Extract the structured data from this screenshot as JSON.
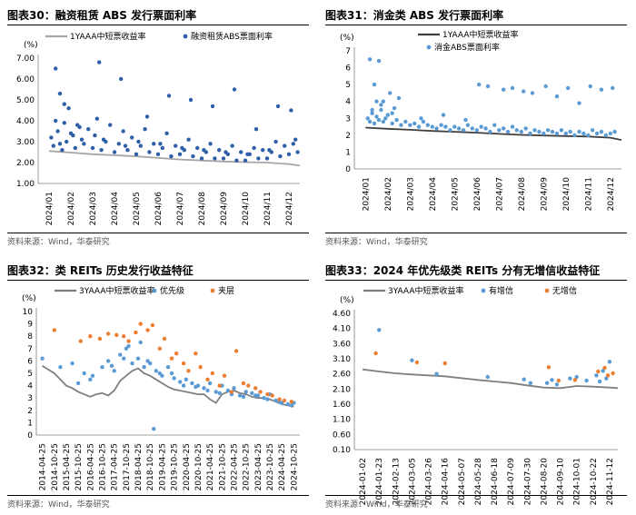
{
  "panels": [
    {
      "title": "图表30：融资租赁 ABS 发行票面利率",
      "source": "资料来源：Wind，华泰研究",
      "chart_data": {
        "type": "scatter",
        "ylabel": "(%)",
        "ylim": [
          1.0,
          7.0
        ],
        "yticks": [
          "1.00",
          "2.00",
          "3.00",
          "4.00",
          "5.00",
          "6.00",
          "7.00"
        ],
        "xticks": [
          "2024/01",
          "2024/02",
          "2024/03",
          "2024/04",
          "2024/05",
          "2024/06",
          "2024/07",
          "2024/08",
          "2024/09",
          "2024/10",
          "2024/11",
          "2024/12"
        ],
        "series": [
          {
            "name": "1YAAA中短票收益率",
            "type": "line",
            "color": "#a6a6a6",
            "x": [
              0,
              1,
              2,
              3,
              4,
              5,
              6,
              7,
              8,
              9,
              10,
              11,
              11.5
            ],
            "values": [
              2.55,
              2.48,
              2.4,
              2.35,
              2.3,
              2.22,
              2.15,
              2.1,
              2.05,
              2.02,
              2.0,
              1.93,
              1.85
            ]
          },
          {
            "name": "融资租赁ABS票面利率",
            "type": "scatter",
            "color": "#2e5fa8",
            "x": [
              0.1,
              0.2,
              0.3,
              0.4,
              0.5,
              0.6,
              0.7,
              0.8,
              0.9,
              1.1,
              1.2,
              1.3,
              1.5,
              1.6,
              1.8,
              2.0,
              2.1,
              2.2,
              2.4,
              2.6,
              2.8,
              3.0,
              3.2,
              3.4,
              3.6,
              3.8,
              4.0,
              4.2,
              4.4,
              4.6,
              4.8,
              5.0,
              5.2,
              5.4,
              5.6,
              5.8,
              6.0,
              6.2,
              6.4,
              6.6,
              6.8,
              7.0,
              7.2,
              7.4,
              7.6,
              7.8,
              8.0,
              8.2,
              8.4,
              8.6,
              8.8,
              9.0,
              9.2,
              9.4,
              9.6,
              9.8,
              10.0,
              10.2,
              10.4,
              10.6,
              10.8,
              11.0,
              11.2,
              11.4,
              0.3,
              0.7,
              1.4,
              2.3,
              3.3,
              4.5,
              5.5,
              6.5,
              7.5,
              8.5,
              9.5,
              10.5,
              11.1,
              0.5,
              1.0,
              2.5,
              3.5,
              4.1,
              5.1,
              6.1,
              7.1,
              8.1,
              9.1,
              10.1,
              11.3
            ],
            "values": [
              3.2,
              2.8,
              4.0,
              3.5,
              5.3,
              2.6,
              3.9,
              3.0,
              4.6,
              3.3,
              2.7,
              3.8,
              3.1,
              2.9,
              3.6,
              2.7,
              3.3,
              4.1,
              2.6,
              3.0,
              3.8,
              2.5,
              2.9,
              3.5,
              2.6,
              3.2,
              2.4,
              2.8,
              3.6,
              2.5,
              2.9,
              2.4,
              2.7,
              3.4,
              2.3,
              2.8,
              2.4,
              2.6,
              3.1,
              2.3,
              2.7,
              2.2,
              2.5,
              2.9,
              2.2,
              2.6,
              2.2,
              2.4,
              2.8,
              2.1,
              2.5,
              2.1,
              2.4,
              2.7,
              2.2,
              2.6,
              2.2,
              2.5,
              3.0,
              2.3,
              2.8,
              2.4,
              2.9,
              2.5,
              6.5,
              4.8,
              3.7,
              6.8,
              6.0,
              4.2,
              5.2,
              5.0,
              4.7,
              5.5,
              3.6,
              4.7,
              4.5,
              2.9,
              3.4,
              3.1,
              2.8,
              3.0,
              2.9,
              2.7,
              2.6,
              2.5,
              2.4,
              2.6,
              3.1
            ]
          }
        ]
      }
    },
    {
      "title": "图表31：消金类 ABS 发行票面利率",
      "source": "资料来源：Wind，华泰研究",
      "chart_data": {
        "type": "scatter",
        "ylabel": "(%)",
        "ylim": [
          0,
          7
        ],
        "yticks": [
          "0",
          "1",
          "2",
          "3",
          "4",
          "5",
          "6",
          "7"
        ],
        "xticks": [
          "2024/01",
          "2024/02",
          "2024/03",
          "2024/04",
          "2024/05",
          "2024/06",
          "2024/07",
          "2024/08",
          "2024/09",
          "2024/10",
          "2024/11",
          "2024/12"
        ],
        "series": [
          {
            "name": "1YAAA中短票收益率",
            "type": "line",
            "color": "#404040",
            "x": [
              0,
              1,
              2,
              3,
              4,
              5,
              6,
              7,
              8,
              9,
              10,
              11,
              11.5
            ],
            "values": [
              2.45,
              2.38,
              2.32,
              2.25,
              2.2,
              2.15,
              2.08,
              2.02,
              1.98,
              1.95,
              1.92,
              1.85,
              1.72
            ]
          },
          {
            "name": "消金ABS票面利率",
            "type": "scatter",
            "color": "#5b9bd5",
            "x": [
              0.1,
              0.2,
              0.3,
              0.4,
              0.5,
              0.6,
              0.7,
              0.8,
              0.9,
              1.0,
              1.2,
              1.4,
              1.6,
              1.8,
              2.0,
              2.2,
              2.4,
              2.6,
              2.8,
              3.0,
              3.2,
              3.4,
              3.6,
              3.8,
              4.0,
              4.2,
              4.4,
              4.6,
              4.8,
              5.0,
              5.2,
              5.4,
              5.6,
              5.8,
              6.0,
              6.2,
              6.4,
              6.6,
              6.8,
              7.0,
              7.2,
              7.4,
              7.6,
              7.8,
              8.0,
              8.2,
              8.4,
              8.6,
              8.8,
              9.0,
              9.2,
              9.4,
              9.6,
              9.8,
              10.0,
              10.2,
              10.4,
              10.6,
              10.8,
              11.0,
              11.2,
              0.2,
              0.4,
              0.6,
              0.8,
              1.1,
              1.3,
              1.5,
              5.1,
              5.5,
              6.2,
              6.6,
              7.1,
              7.5,
              8.1,
              8.6,
              9.1,
              9.6,
              10.1,
              10.6,
              11.1,
              0.3,
              0.5,
              0.7,
              1.2,
              2.5,
              3.5,
              4.5
            ],
            "values": [
              3.0,
              2.8,
              3.3,
              2.7,
              3.1,
              2.9,
              3.5,
              2.8,
              3.0,
              3.2,
              2.7,
              2.9,
              2.6,
              2.8,
              2.6,
              2.7,
              2.5,
              2.8,
              2.6,
              2.5,
              2.4,
              2.6,
              2.5,
              2.3,
              2.5,
              2.4,
              2.3,
              2.6,
              2.4,
              2.3,
              2.5,
              2.4,
              2.2,
              2.6,
              2.3,
              2.4,
              2.2,
              2.5,
              2.3,
              2.2,
              2.4,
              2.1,
              2.3,
              2.2,
              2.1,
              2.3,
              2.2,
              2.1,
              2.3,
              2.1,
              2.2,
              2.0,
              2.2,
              2.1,
              2.0,
              2.3,
              2.1,
              2.2,
              2.0,
              2.1,
              2.2,
              6.5,
              5.0,
              6.4,
              4.0,
              4.5,
              3.6,
              4.2,
              5.0,
              4.9,
              4.7,
              4.8,
              4.6,
              4.5,
              4.9,
              4.3,
              4.8,
              3.9,
              4.9,
              4.7,
              4.8,
              3.5,
              4.0,
              3.8,
              3.3,
              3.0,
              3.2,
              2.9
            ]
          }
        ]
      }
    },
    {
      "title": "图表32：类 REITs 历史发行收益特征",
      "source": "资料来源：Wind，华泰研究",
      "chart_data": {
        "type": "scatter",
        "ylabel": "(%)",
        "ylim": [
          0,
          10
        ],
        "yticks": [
          "0",
          "1",
          "2",
          "3",
          "4",
          "5",
          "6",
          "7",
          "8",
          "9",
          "10"
        ],
        "xticks": [
          "2014-04-25",
          "2014-10-25",
          "2015-04-25",
          "2015-10-25",
          "2016-04-25",
          "2016-10-25",
          "2017-04-25",
          "2017-10-25",
          "2018-04-25",
          "2018-10-25",
          "2019-04-25",
          "2019-10-25",
          "2020-04-25",
          "2020-10-25",
          "2021-04-25",
          "2021-10-25",
          "2022-04-25",
          "2022-10-25",
          "2023-04-25",
          "2023-10-25",
          "2024-04-25",
          "2024-10-25"
        ],
        "series": [
          {
            "name": "3YAAA中短票收益率",
            "type": "line",
            "color": "#7f7f7f",
            "x": [
              0,
              0.5,
              1,
              1.5,
              2,
              2.5,
              3,
              3.5,
              4,
              4.5,
              5,
              5.5,
              6,
              6.5,
              7,
              7.5,
              8,
              8.5,
              9,
              9.5,
              10,
              10.5,
              11,
              11.5,
              12,
              12.5,
              13,
              13.5,
              14,
              14.5,
              15,
              15.5,
              16,
              16.5,
              17,
              17.5,
              18,
              18.5,
              19,
              19.5,
              20,
              20.5,
              21
            ],
            "values": [
              5.6,
              5.3,
              5.0,
              4.5,
              4.0,
              3.8,
              3.5,
              3.3,
              3.1,
              3.3,
              3.4,
              3.2,
              3.6,
              4.4,
              4.8,
              5.2,
              5.4,
              5.0,
              4.8,
              4.5,
              4.2,
              3.9,
              3.7,
              3.6,
              3.5,
              3.4,
              3.3,
              3.3,
              2.9,
              2.6,
              3.3,
              3.5,
              3.6,
              3.4,
              3.3,
              3.1,
              3.0,
              3.0,
              2.9,
              2.7,
              2.5,
              2.4,
              2.3
            ]
          },
          {
            "name": "优先级",
            "type": "scatter",
            "color": "#5b9bd5",
            "x": [
              0,
              1.5,
              3.0,
              3.5,
              4.2,
              5.0,
              5.5,
              6.0,
              6.5,
              7.0,
              7.5,
              8.0,
              8.5,
              9.0,
              9.5,
              10.0,
              10.5,
              11.0,
              11.5,
              12.0,
              12.5,
              13.0,
              13.5,
              14.0,
              14.5,
              15.0,
              15.5,
              16.0,
              16.5,
              17.0,
              17.5,
              18.0,
              18.5,
              19.0,
              19.5,
              20.0,
              20.5,
              21.0,
              2.5,
              4.0,
              5.8,
              6.8,
              7.2,
              8.2,
              8.8,
              9.8,
              10.8,
              11.8,
              12.8,
              13.8,
              14.8,
              15.8,
              16.8,
              17.8,
              18.8,
              19.8,
              20.8,
              9.3
            ],
            "values": [
              6.2,
              5.5,
              4.2,
              5.0,
              4.8,
              5.5,
              6.0,
              5.2,
              6.5,
              7.0,
              5.8,
              6.2,
              5.5,
              5.8,
              5.2,
              4.8,
              5.5,
              4.6,
              4.3,
              4.5,
              4.2,
              4.0,
              3.8,
              4.2,
              3.5,
              4.0,
              3.6,
              3.8,
              3.2,
              3.5,
              3.4,
              3.2,
              3.0,
              3.3,
              2.8,
              2.6,
              2.5,
              2.6,
              5.8,
              4.5,
              5.6,
              6.2,
              7.2,
              7.5,
              6.0,
              5.0,
              5.0,
              4.0,
              3.9,
              3.6,
              3.4,
              3.3,
              3.1,
              3.2,
              2.9,
              2.7,
              2.4,
              0.5
            ]
          },
          {
            "name": "夹层",
            "type": "scatter",
            "color": "#ed7d31",
            "x": [
              1.0,
              3.2,
              4.0,
              4.8,
              5.5,
              6.2,
              6.8,
              7.2,
              7.8,
              8.2,
              8.8,
              9.2,
              9.8,
              10.2,
              10.8,
              11.2,
              11.8,
              12.2,
              12.8,
              13.2,
              13.8,
              14.2,
              14.8,
              15.2,
              15.8,
              16.2,
              16.8,
              17.2,
              17.8,
              18.2,
              18.8,
              19.2,
              19.8,
              20.2,
              20.8
            ],
            "values": [
              8.5,
              7.6,
              8.0,
              7.8,
              8.2,
              8.1,
              8.0,
              7.6,
              8.3,
              9.0,
              8.5,
              8.9,
              7.0,
              7.8,
              6.2,
              6.6,
              5.8,
              5.2,
              6.6,
              5.5,
              4.5,
              5.0,
              4.0,
              4.8,
              3.5,
              6.8,
              4.2,
              4.0,
              3.8,
              3.5,
              3.3,
              3.2,
              2.9,
              2.8,
              2.7
            ]
          }
        ]
      }
    },
    {
      "title": "图表33：2024 年优先级类 REITs 分有无增信收益特征",
      "source": "资料来源：Wind，华泰研究",
      "chart_data": {
        "type": "scatter",
        "ylabel": "(%)",
        "ylim": [
          0.1,
          4.6
        ],
        "yticks": [
          "0.10",
          "0.60",
          "1.10",
          "1.60",
          "2.10",
          "2.60",
          "3.10",
          "3.60",
          "4.10",
          "4.60"
        ],
        "xticks": [
          "2024-01-02",
          "2024-01-23",
          "2024-02-13",
          "2024-03-05",
          "2024-03-26",
          "2024-04-16",
          "2024-05-07",
          "2024-05-28",
          "2024-06-18",
          "2024-07-09",
          "2024-07-30",
          "2024-08-20",
          "2024-09-10",
          "2024-10-01",
          "2024-10-22",
          "2024-11-12"
        ],
        "series": [
          {
            "name": "3YAAA中短票收益率",
            "type": "line",
            "color": "#7f7f7f",
            "x": [
              0,
              1,
              2,
              3,
              4,
              5,
              6,
              7,
              8,
              9,
              10,
              11,
              12,
              13,
              14,
              15,
              15.5
            ],
            "values": [
              2.75,
              2.68,
              2.62,
              2.58,
              2.55,
              2.52,
              2.46,
              2.4,
              2.35,
              2.3,
              2.22,
              2.15,
              2.13,
              2.2,
              2.18,
              2.15,
              2.13
            ]
          },
          {
            "name": "有增信",
            "type": "scatter",
            "color": "#5b9bd5",
            "x": [
              1.0,
              3.0,
              4.5,
              7.6,
              9.8,
              11.2,
              11.5,
              11.8,
              12.6,
              13.0,
              13.6,
              14.2,
              14.4,
              14.6,
              14.8,
              15.0,
              10.2
            ],
            "values": [
              4.05,
              3.05,
              2.6,
              2.5,
              2.42,
              2.3,
              2.4,
              2.25,
              2.45,
              2.5,
              2.38,
              2.55,
              2.35,
              2.7,
              2.45,
              3.0,
              2.3
            ]
          },
          {
            "name": "无增信",
            "type": "scatter",
            "color": "#ed7d31",
            "x": [
              0.8,
              3.3,
              5.0,
              11.3,
              11.9,
              12.9,
              14.3,
              14.7,
              14.9,
              15.2
            ],
            "values": [
              3.28,
              2.98,
              2.95,
              2.82,
              2.38,
              2.4,
              2.68,
              2.8,
              2.55,
              2.62
            ]
          }
        ]
      }
    }
  ]
}
